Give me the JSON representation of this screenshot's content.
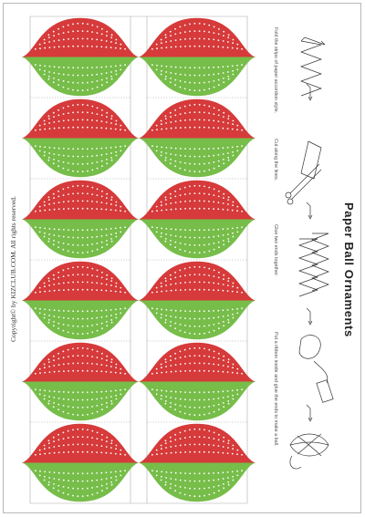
{
  "title": "Paper Ball Ornaments",
  "copyright": "Copyright© by KIZCLUB.COM. All rights reserved.",
  "steps": [
    {
      "text": "Fold the strips of paper accordion style.",
      "icon": "accordion-fold-icon"
    },
    {
      "text": "Cut along the lines.",
      "icon": "scissors-cut-icon"
    },
    {
      "text": "Glue two ends together.",
      "icon": "glue-ends-icon"
    },
    {
      "text": "Put a ribbon inside and glue the ends to make a ball.",
      "icon": "ribbon-glue-icon"
    }
  ],
  "result_icon": "finished-ball-icon",
  "strips": {
    "columns": 2,
    "petals_per_strip": 6,
    "colors": {
      "top": "#d63a3a",
      "bottom": "#77bd4a",
      "dots": "#ffffff",
      "cut_line": "#aaaaaa"
    }
  }
}
